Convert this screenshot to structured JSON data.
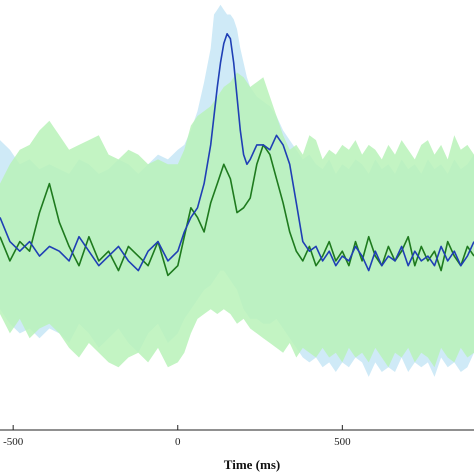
{
  "chart_data": {
    "type": "line",
    "title": "",
    "xlabel": "Time (ms)",
    "ylabel": "",
    "xlim": [
      -540,
      900
    ],
    "ylim": [
      -4.3,
      4.6
    ],
    "xticks": [
      -500,
      0,
      500
    ],
    "xtick_labels": [
      "-500",
      "0",
      "500"
    ],
    "grid": false,
    "colors": {
      "blue_line": "#1f3fb5",
      "blue_band": "#cfeaf7",
      "green_line": "#1e7a1e",
      "green_band": "#b9f2b9"
    },
    "series": [
      {
        "color": "blue",
        "x": [
          -540,
          -510,
          -480,
          -450,
          -420,
          -390,
          -360,
          -330,
          -300,
          -270,
          -240,
          -210,
          -180,
          -150,
          -120,
          -90,
          -60,
          -30,
          0,
          20,
          40,
          60,
          80,
          100,
          110,
          120,
          130,
          140,
          150,
          160,
          170,
          180,
          190,
          200,
          210,
          220,
          240,
          260,
          280,
          300,
          320,
          340,
          360,
          380,
          400,
          420,
          440,
          460,
          480,
          500,
          520,
          540,
          560,
          580,
          600,
          620,
          640,
          660,
          680,
          700,
          720,
          740,
          760,
          780,
          800,
          820,
          840,
          860,
          880,
          900
        ],
        "y": [
          0.1,
          -0.4,
          -0.6,
          -0.4,
          -0.7,
          -0.5,
          -0.6,
          -0.8,
          -0.3,
          -0.6,
          -0.9,
          -0.7,
          -0.5,
          -0.8,
          -1.0,
          -0.6,
          -0.4,
          -0.8,
          -0.6,
          -0.2,
          0.1,
          0.3,
          0.8,
          1.6,
          2.2,
          2.8,
          3.3,
          3.7,
          3.9,
          3.8,
          3.3,
          2.6,
          1.9,
          1.4,
          1.2,
          1.3,
          1.6,
          1.6,
          1.5,
          1.8,
          1.6,
          1.2,
          0.4,
          -0.4,
          -0.6,
          -0.5,
          -0.8,
          -0.6,
          -0.9,
          -0.7,
          -0.8,
          -0.5,
          -0.7,
          -1.0,
          -0.6,
          -0.9,
          -0.7,
          -0.8,
          -0.5,
          -0.9,
          -0.6,
          -0.8,
          -0.7,
          -0.9,
          -0.5,
          -0.8,
          -0.6,
          -0.9,
          -0.7,
          -0.4
        ],
        "band_upper": [
          1.7,
          1.5,
          1.2,
          1.3,
          1.1,
          1.2,
          1.1,
          1.0,
          1.3,
          1.2,
          1.0,
          1.1,
          1.3,
          1.2,
          1.0,
          1.2,
          1.4,
          1.3,
          1.5,
          1.6,
          1.9,
          2.3,
          2.9,
          3.6,
          4.3,
          4.4,
          4.5,
          4.4,
          4.3,
          4.3,
          4.2,
          4.0,
          3.6,
          3.3,
          3.0,
          2.8,
          2.6,
          2.5,
          2.4,
          2.2,
          1.9,
          1.7,
          1.5,
          1.3,
          1.4,
          1.2,
          1.1,
          1.3,
          1.0,
          1.2,
          1.1,
          1.3,
          1.2,
          1.0,
          1.3,
          1.1,
          1.2,
          1.0,
          1.3,
          1.1,
          1.2,
          1.0,
          1.3,
          1.1,
          1.2,
          1.0,
          1.3,
          1.1,
          1.2,
          1.4
        ],
        "band_lower": [
          -1.8,
          -2.1,
          -2.3,
          -2.2,
          -2.4,
          -2.2,
          -2.3,
          -2.5,
          -2.1,
          -2.3,
          -2.6,
          -2.4,
          -2.2,
          -2.5,
          -2.7,
          -2.3,
          -2.1,
          -2.5,
          -2.3,
          -2.0,
          -1.8,
          -1.6,
          -1.4,
          -1.3,
          -1.2,
          -1.1,
          -1.0,
          -1.0,
          -1.1,
          -1.2,
          -1.3,
          -1.4,
          -1.6,
          -1.8,
          -1.9,
          -2.0,
          -2.0,
          -2.1,
          -2.1,
          -2.0,
          -2.2,
          -2.4,
          -2.6,
          -2.8,
          -2.9,
          -2.8,
          -3.0,
          -2.9,
          -3.1,
          -2.9,
          -3.0,
          -2.8,
          -2.9,
          -3.2,
          -2.9,
          -3.1,
          -3.0,
          -3.1,
          -2.8,
          -3.1,
          -2.9,
          -3.0,
          -2.9,
          -3.2,
          -2.8,
          -3.0,
          -2.9,
          -3.1,
          -3.0,
          -2.7
        ]
      },
      {
        "color": "green",
        "x": [
          -540,
          -510,
          -480,
          -450,
          -420,
          -390,
          -360,
          -330,
          -300,
          -270,
          -240,
          -210,
          -180,
          -150,
          -120,
          -90,
          -60,
          -30,
          0,
          20,
          40,
          60,
          80,
          100,
          120,
          140,
          160,
          180,
          200,
          220,
          240,
          260,
          280,
          300,
          320,
          340,
          360,
          380,
          400,
          420,
          440,
          460,
          480,
          500,
          520,
          540,
          560,
          580,
          600,
          620,
          640,
          660,
          680,
          700,
          720,
          740,
          760,
          780,
          800,
          820,
          840,
          860,
          880,
          900
        ],
        "y": [
          -0.3,
          -0.8,
          -0.4,
          -0.6,
          0.2,
          0.8,
          0.0,
          -0.5,
          -0.9,
          -0.3,
          -0.8,
          -0.6,
          -1.0,
          -0.5,
          -0.7,
          -0.9,
          -0.4,
          -1.1,
          -0.9,
          -0.3,
          0.3,
          0.1,
          -0.2,
          0.4,
          0.8,
          1.2,
          0.9,
          0.2,
          0.3,
          0.5,
          1.2,
          1.6,
          1.4,
          0.9,
          0.4,
          -0.2,
          -0.6,
          -0.8,
          -0.5,
          -0.9,
          -0.7,
          -0.4,
          -0.8,
          -0.6,
          -0.9,
          -0.4,
          -0.8,
          -0.3,
          -0.7,
          -0.9,
          -0.5,
          -0.8,
          -0.6,
          -0.3,
          -0.9,
          -0.5,
          -0.8,
          -0.6,
          -1.0,
          -0.4,
          -0.7,
          -0.9,
          -0.5,
          -0.7
        ],
        "band_upper": [
          0.8,
          1.2,
          1.5,
          1.6,
          1.9,
          2.1,
          1.8,
          1.5,
          1.6,
          1.7,
          1.8,
          1.4,
          1.3,
          1.5,
          1.4,
          1.2,
          1.3,
          1.2,
          1.2,
          1.5,
          2.0,
          2.2,
          2.3,
          2.4,
          2.6,
          2.8,
          2.9,
          3.1,
          3.0,
          2.8,
          2.9,
          3.0,
          2.6,
          2.2,
          1.8,
          1.5,
          1.6,
          1.4,
          1.8,
          1.7,
          1.3,
          1.5,
          1.4,
          1.6,
          1.5,
          1.7,
          1.4,
          1.6,
          1.5,
          1.3,
          1.6,
          1.4,
          1.7,
          1.5,
          1.3,
          1.6,
          1.7,
          1.4,
          1.6,
          1.3,
          1.8,
          1.5,
          1.6,
          1.4
        ],
        "band_lower": [
          -1.9,
          -2.3,
          -2.0,
          -2.4,
          -2.2,
          -2.1,
          -2.3,
          -2.6,
          -2.8,
          -2.5,
          -2.7,
          -2.9,
          -3.0,
          -2.8,
          -2.7,
          -2.9,
          -2.6,
          -3.0,
          -2.9,
          -2.7,
          -2.3,
          -2.0,
          -1.9,
          -1.8,
          -1.9,
          -1.8,
          -1.9,
          -2.1,
          -2.0,
          -2.2,
          -2.3,
          -2.4,
          -2.5,
          -2.6,
          -2.7,
          -2.5,
          -2.8,
          -2.6,
          -2.7,
          -2.8,
          -2.6,
          -2.8,
          -2.7,
          -2.9,
          -2.6,
          -2.8,
          -2.7,
          -2.9,
          -2.6,
          -2.8,
          -3.0,
          -2.7,
          -2.8,
          -2.6,
          -2.9,
          -2.7,
          -2.8,
          -3.0,
          -2.6,
          -2.8,
          -2.9,
          -2.6,
          -2.8,
          -2.7
        ]
      }
    ]
  }
}
